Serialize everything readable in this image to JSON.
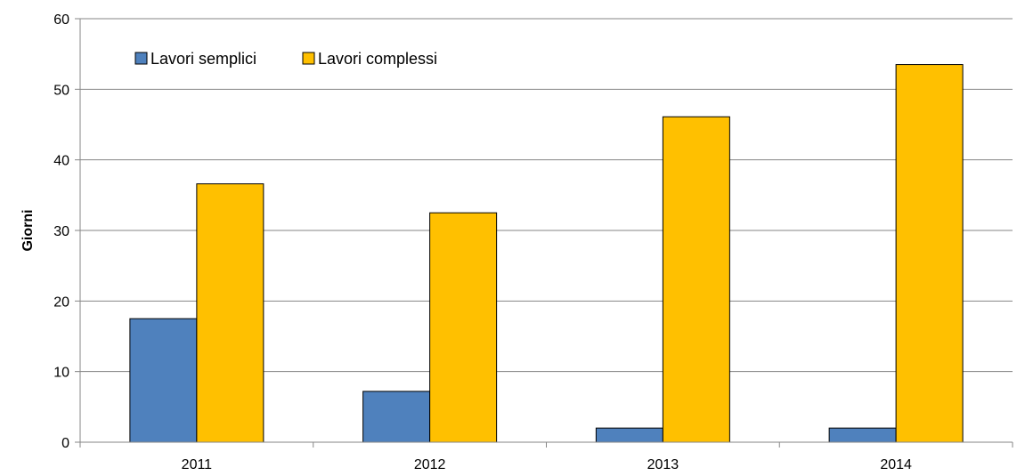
{
  "chart_data": {
    "type": "bar",
    "categories": [
      "2011",
      "2012",
      "2013",
      "2014"
    ],
    "series": [
      {
        "name": "Lavori semplici",
        "values": [
          17.5,
          7.2,
          2.0,
          2.0
        ],
        "color": "#4F81BD"
      },
      {
        "name": "Lavori complessi",
        "values": [
          36.6,
          32.5,
          46.1,
          53.5
        ],
        "color": "#FFC000"
      }
    ],
    "ylabel": "Giorni",
    "xlabel": "",
    "ylim": [
      0,
      60
    ],
    "yticks": [
      0,
      10,
      20,
      30,
      40,
      50,
      60
    ],
    "grid": true,
    "legend_position": "top-left"
  }
}
